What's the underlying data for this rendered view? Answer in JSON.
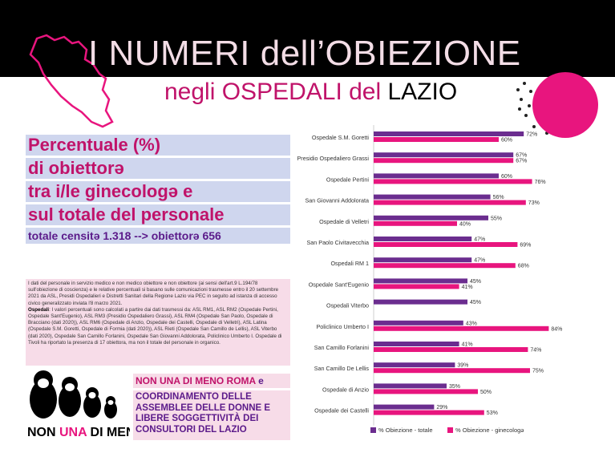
{
  "header": {
    "title": "I NUMERI dell’OBIEZIONE",
    "subtitle_prefix": "negli OSPEDALI del ",
    "subtitle_strong": "LAZIO"
  },
  "heading": {
    "line1": "Percentuale (%)",
    "line2": "di obiettorə",
    "line3": "tra i/le ginecologə e",
    "line4": "sul totale del personale",
    "line5_prefix": "totale censitə 1.318 --> ",
    "line5_strong": "obiettorə 656"
  },
  "info": {
    "para1": "I dati del personale in servizio medico e non medico obiettore e non obiettore (ai sensi dell'art.9 L.194/78 sull'obiezione di coscienza) e le relative percentuali si basano sulle comunicazioni trasmesse entro il 20 settembre 2021 da ASL, Presidi Ospedalieri e Distretti Sanitari della Regione Lazio via PEC in seguito ad istanza di accesso civico generalizzato inviata l'8 marzo 2021.",
    "para2_label": "Ospedali",
    "para2": ": I valori percentuali sono calcolati a partire dai dati trasmessi da: ASL RM1, ASL RM2 (Ospedale Pertini, Ospedale Sant'Eugenio), ASL RM3 (Presidio Ospedaliero Grassi), ASL RM4 (Ospedale San Paolo, Ospedale di Bracciano (dati 2020)), ASL RM6 (Ospedale di Anzio, Ospedale dei Castelli, Ospedale di Velletri), ASL Latina (Ospedale S.M. Goretti, Ospedale di Formia (dati 2020)), ASL Rieti (Ospedale San Camillo de Lellis), ASL Viterbo (dati 2020), Ospedale San Camillo Forlanini, Ospedale San Giovanni Addolorata, Policlinico Umberto I. Ospedale di Tivoli ha riportato la presenza di 17 obiettora, ma non il totale del personale in organico."
  },
  "logo": {
    "text_non": "NON ",
    "text_una": "UNA",
    "text_di_meno": " DI MENO"
  },
  "credits": {
    "nonuna": "NON UNA DI MENO ROMA",
    "e": " e",
    "coord": "COORDINAMENTO DELLE ASSEMBLEE DELLE DONNE E LIBERE SOGGETTIVITÀ DEI CONSULTORI DEL LAZIO"
  },
  "chart_data": {
    "type": "bar",
    "orientation": "horizontal",
    "categories": [
      "Ospedale S.M. Goretti",
      "Presidio Ospedaliero Grassi",
      "Ospedale Pertini",
      "San Giovanni Addolorata",
      "Ospedale di Velletri",
      "San Paolo Civitavecchia",
      "Ospedali RM 1",
      "Ospedale Sant'Eugenio",
      "Ospedali Viterbo",
      "Policlinico Umberto I",
      "San Camillo Forlanini",
      "San Camillo De Lellis",
      "Ospedale di Anzio",
      "Ospedale dei Castelli"
    ],
    "series": [
      {
        "name": "% Obiezione - totale",
        "color": "#6b2d8f",
        "values": [
          72,
          67,
          60,
          56,
          55,
          47,
          47,
          45,
          45,
          43,
          41,
          39,
          35,
          29
        ]
      },
      {
        "name": "% Obiezione - ginecologə",
        "color": "#e8157e",
        "values": [
          60,
          67,
          76,
          73,
          40,
          69,
          68,
          41,
          null,
          84,
          74,
          75,
          50,
          53
        ]
      }
    ],
    "value_suffix": "%",
    "xlim": [
      0,
      100
    ],
    "legend": "bottom",
    "grid": false
  }
}
